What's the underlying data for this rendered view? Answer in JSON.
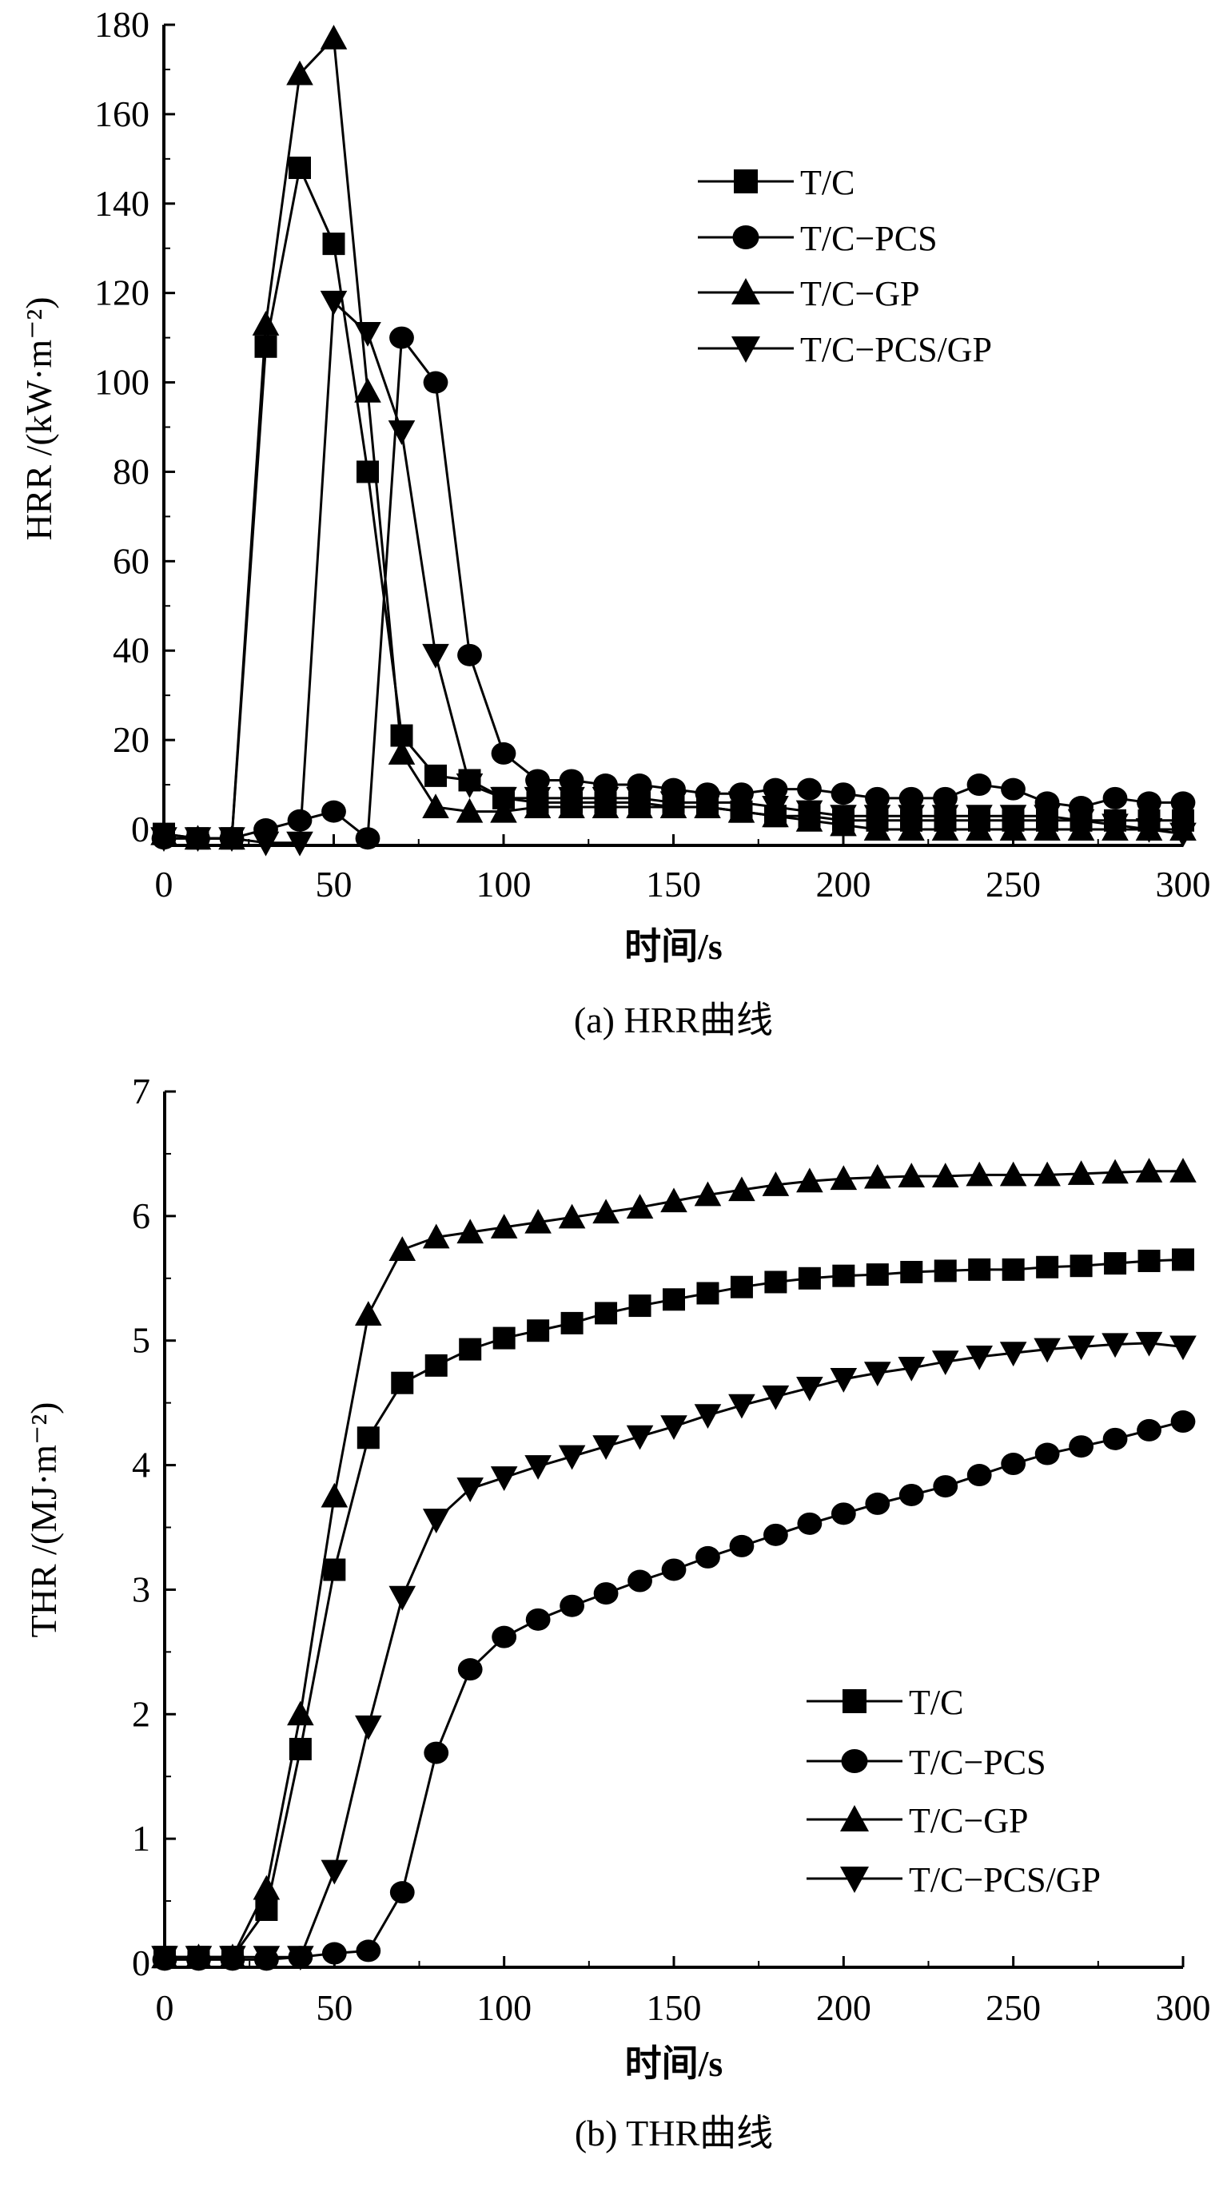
{
  "chart_data": [
    {
      "type": "line",
      "caption": "(a) HRR曲线",
      "xlabel": "时间/s",
      "ylabel": "HRR /(kW·m⁻²)",
      "xlim": [
        0,
        300
      ],
      "ylim": [
        -5,
        180
      ],
      "xticks": [
        0,
        50,
        100,
        150,
        200,
        250,
        300
      ],
      "yticks": [
        0,
        20,
        40,
        60,
        80,
        100,
        120,
        140,
        160,
        180
      ],
      "legend_position": "top-right",
      "x": [
        0,
        10,
        20,
        30,
        40,
        50,
        60,
        70,
        80,
        90,
        100,
        110,
        120,
        130,
        140,
        150,
        160,
        170,
        180,
        190,
        200,
        210,
        220,
        230,
        240,
        250,
        260,
        270,
        280,
        290,
        300
      ],
      "series": [
        {
          "name": "T/C",
          "marker": "square",
          "values": [
            -1,
            -2,
            -2,
            108,
            148,
            131,
            80,
            21,
            12,
            11,
            7,
            6,
            6,
            6,
            6,
            5,
            5,
            4,
            3,
            3,
            2,
            2,
            2,
            2,
            2,
            2,
            2,
            2,
            2,
            2,
            2
          ]
        },
        {
          "name": "T/C−PCS",
          "marker": "circle",
          "values": [
            -2,
            -2,
            -2,
            0,
            2,
            4,
            -2,
            110,
            100,
            39,
            17,
            11,
            11,
            10,
            10,
            9,
            8,
            8,
            9,
            9,
            8,
            7,
            7,
            7,
            10,
            9,
            6,
            5,
            7,
            6,
            6
          ]
        },
        {
          "name": "T/C−GP",
          "marker": "triangle-up",
          "values": [
            -1,
            -2,
            -2,
            113,
            169,
            177,
            98,
            17,
            5,
            4,
            4,
            5,
            5,
            5,
            5,
            5,
            5,
            4,
            3,
            2,
            1,
            0,
            0,
            0,
            0,
            0,
            0,
            0,
            0,
            0,
            0
          ]
        },
        {
          "name": "T/C−PCS/GP",
          "marker": "triangle-down",
          "values": [
            -2,
            -2,
            -2,
            -3,
            -3,
            118,
            111,
            89,
            39,
            10,
            7,
            7,
            7,
            7,
            7,
            6,
            6,
            6,
            5,
            4,
            3,
            3,
            3,
            3,
            3,
            3,
            3,
            2,
            1,
            0,
            -1
          ]
        }
      ]
    },
    {
      "type": "line",
      "caption": "(b) THR曲线",
      "xlabel": "时间/s",
      "ylabel": "THR /(MJ·m⁻²)",
      "xlim": [
        0,
        300
      ],
      "ylim": [
        0,
        7
      ],
      "xticks": [
        0,
        50,
        100,
        150,
        200,
        250,
        300
      ],
      "yticks": [
        0,
        1,
        2,
        3,
        4,
        5,
        6,
        7
      ],
      "legend_position": "bottom-right",
      "x": [
        0,
        10,
        20,
        30,
        40,
        50,
        60,
        70,
        80,
        90,
        100,
        110,
        120,
        130,
        140,
        150,
        160,
        170,
        180,
        190,
        200,
        210,
        220,
        230,
        240,
        250,
        260,
        270,
        280,
        290,
        300
      ],
      "series": [
        {
          "name": "T/C",
          "marker": "square",
          "values": [
            0.05,
            0.05,
            0.05,
            0.43,
            1.72,
            3.16,
            4.22,
            4.66,
            4.8,
            4.93,
            5.02,
            5.08,
            5.14,
            5.22,
            5.28,
            5.33,
            5.38,
            5.43,
            5.47,
            5.5,
            5.52,
            5.53,
            5.55,
            5.56,
            5.57,
            5.57,
            5.59,
            5.6,
            5.62,
            5.64,
            5.65
          ]
        },
        {
          "name": "T/C−PCS",
          "marker": "circle",
          "values": [
            0.03,
            0.03,
            0.03,
            0.03,
            0.05,
            0.08,
            0.1,
            0.57,
            1.69,
            2.36,
            2.62,
            2.76,
            2.87,
            2.97,
            3.07,
            3.16,
            3.26,
            3.35,
            3.44,
            3.53,
            3.61,
            3.69,
            3.76,
            3.83,
            3.92,
            4.01,
            4.09,
            4.15,
            4.21,
            4.28,
            4.35
          ]
        },
        {
          "name": "T/C−GP",
          "marker": "triangle-up",
          "values": [
            0.05,
            0.05,
            0.05,
            0.6,
            2.0,
            3.75,
            5.21,
            5.73,
            5.83,
            5.87,
            5.91,
            5.95,
            5.99,
            6.03,
            6.07,
            6.12,
            6.17,
            6.21,
            6.25,
            6.28,
            6.3,
            6.31,
            6.32,
            6.32,
            6.33,
            6.33,
            6.33,
            6.34,
            6.35,
            6.36,
            6.36
          ]
        },
        {
          "name": "T/C−PCS/GP",
          "marker": "triangle-down",
          "values": [
            0.05,
            0.05,
            0.05,
            0.05,
            0.05,
            0.74,
            1.9,
            2.94,
            3.56,
            3.81,
            3.9,
            3.99,
            4.07,
            4.15,
            4.23,
            4.31,
            4.4,
            4.48,
            4.55,
            4.62,
            4.69,
            4.74,
            4.78,
            4.83,
            4.87,
            4.9,
            4.93,
            4.95,
            4.97,
            4.98,
            4.95
          ]
        }
      ]
    }
  ]
}
